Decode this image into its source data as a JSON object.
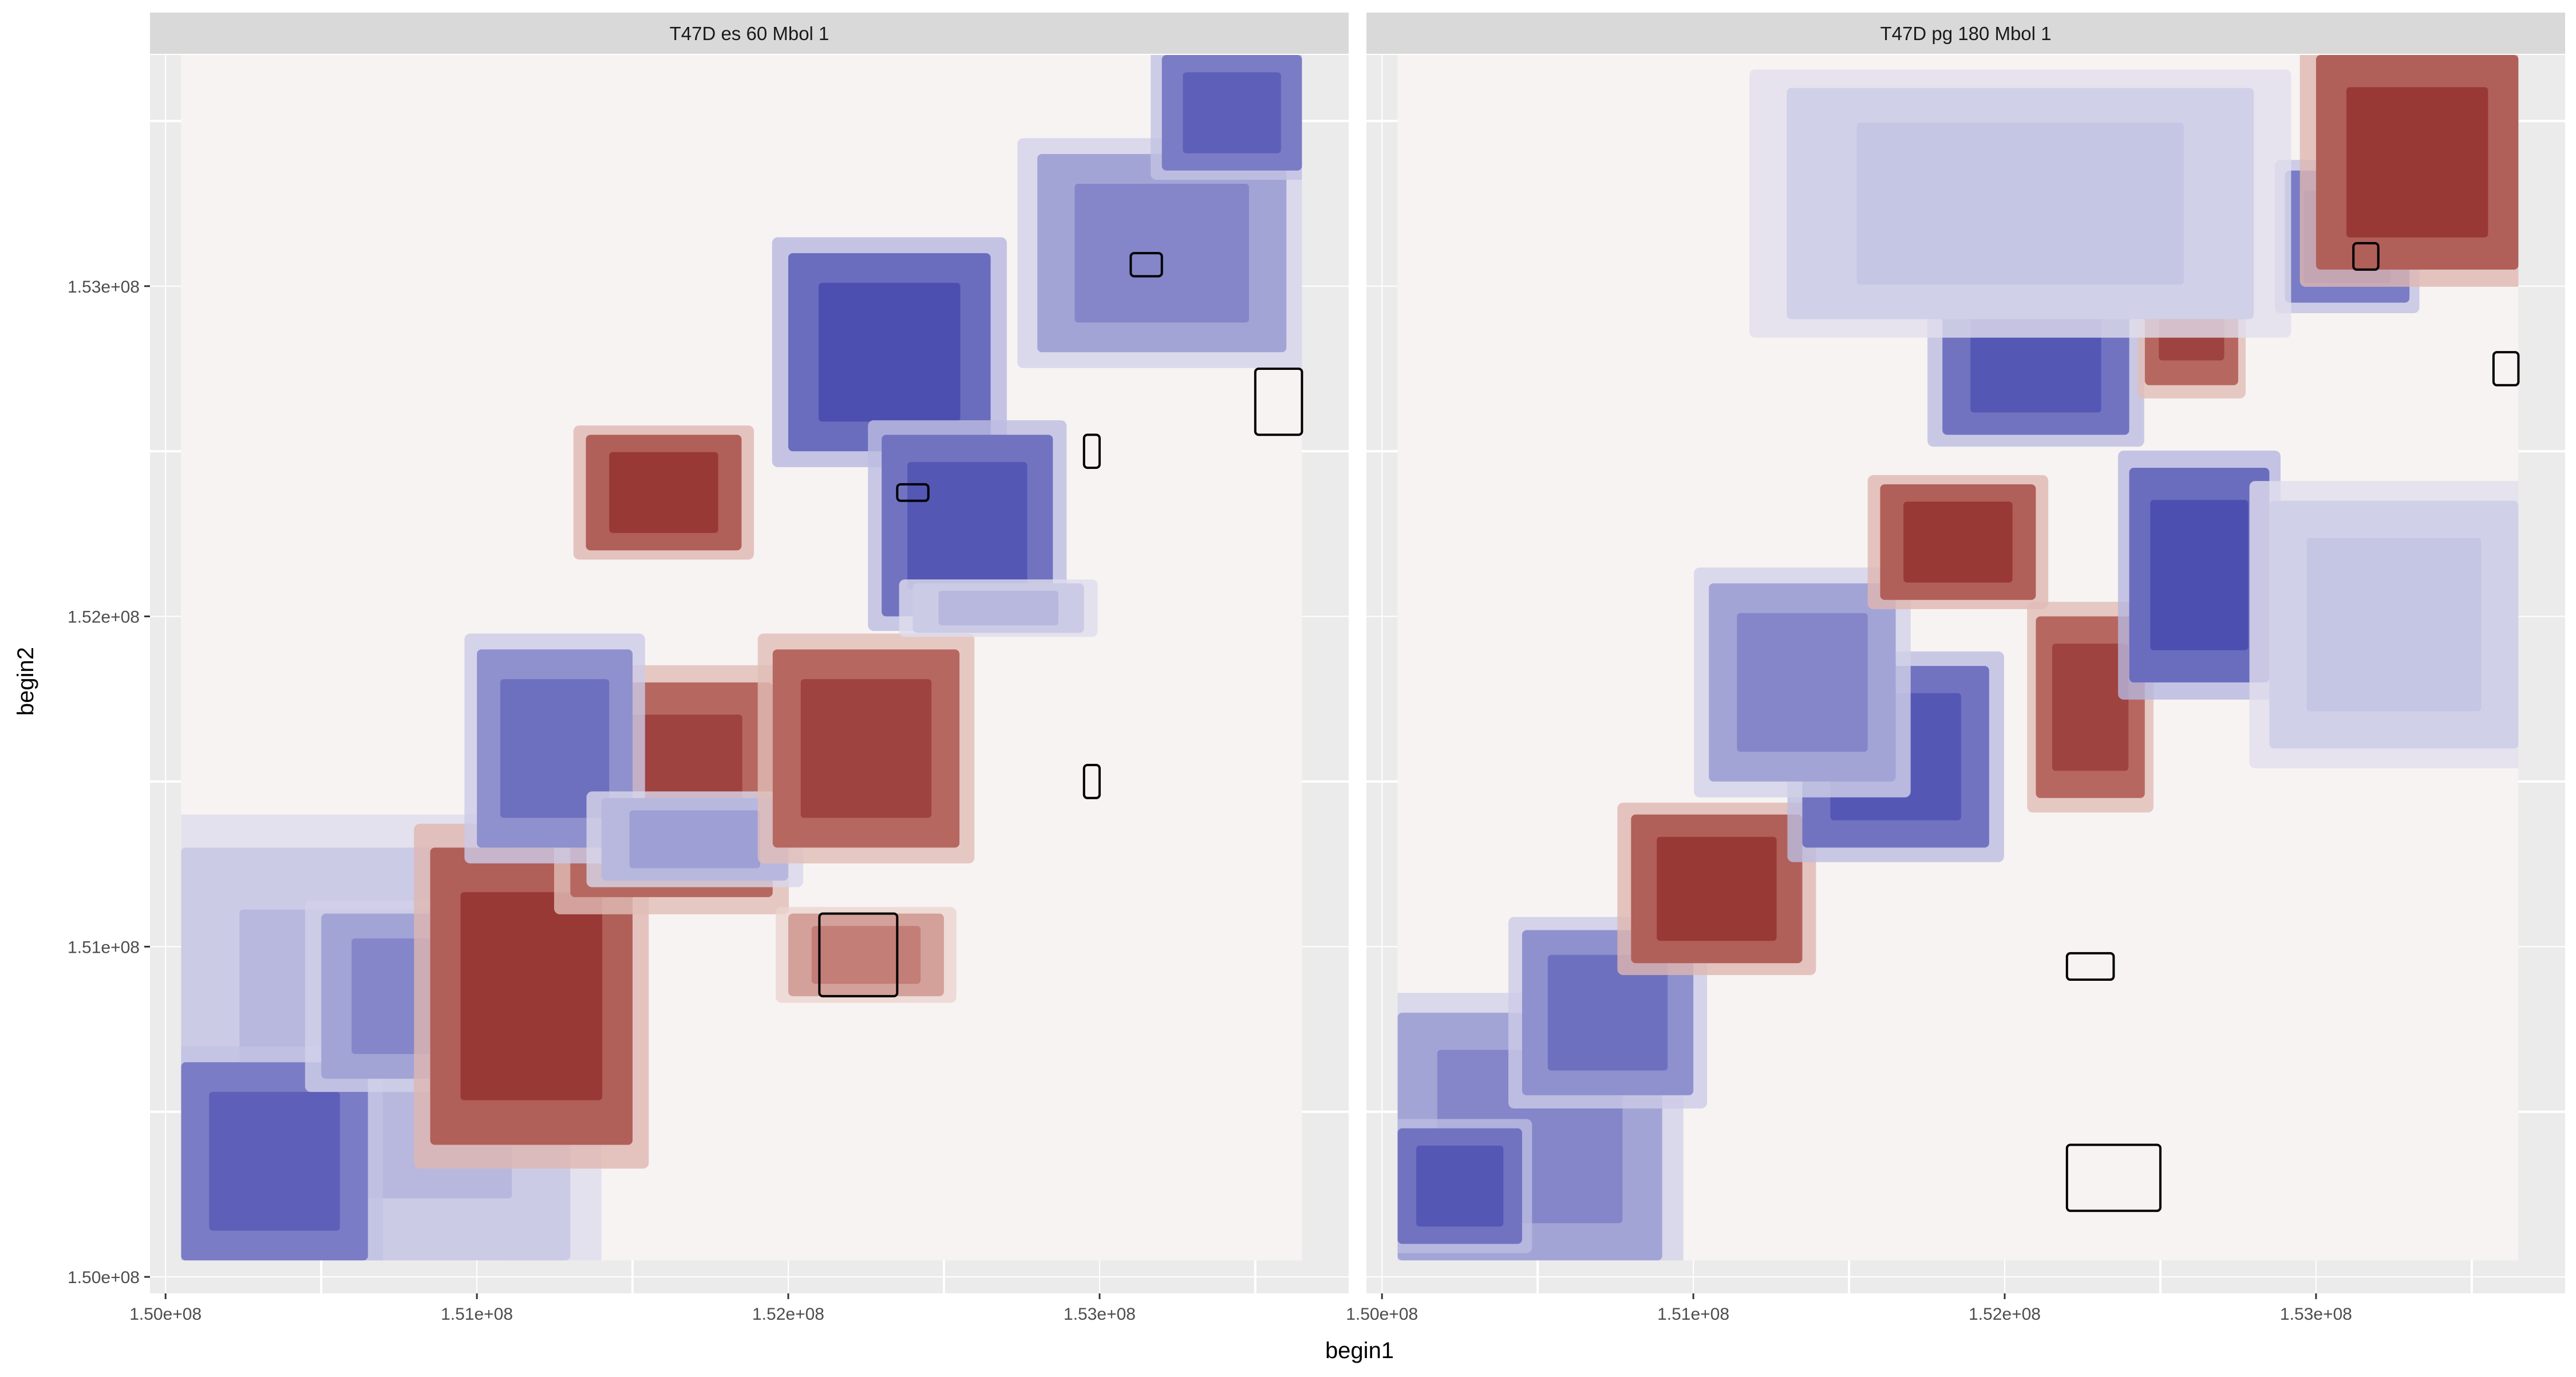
{
  "chart_data": {
    "type": "heatmap",
    "xlabel": "begin1",
    "ylabel": "begin2",
    "xlim": [
      149950000,
      153800000
    ],
    "ylim": [
      149950000,
      153700000
    ],
    "x_ticks": [
      150000000,
      151000000,
      152000000,
      153000000
    ],
    "x_tick_labels": [
      "1.50e+08",
      "1.51e+08",
      "1.52e+08",
      "1.53e+08"
    ],
    "y_ticks": [
      150000000,
      151000000,
      152000000,
      153000000
    ],
    "y_tick_labels": [
      "1.50e+08",
      "1.51e+08",
      "1.52e+08",
      "1.53e+08"
    ],
    "grid": true,
    "colors": {
      "neg_strong": "#3b3fa8",
      "neg_mid": "#7375c2",
      "neg_light": "#c9c9e6",
      "neutral": "#f7f3f2",
      "pos_light": "#e8cbc5",
      "pos_mid": "#b86b63",
      "pos_strong": "#8b2323",
      "panel_bg": "#ebebeb",
      "strip_bg": "#d9d9d9"
    },
    "panels": [
      {
        "title": "T47D es 60 Mbol 1",
        "data_extent": {
          "x": [
            150050000,
            153650000
          ],
          "y": [
            150050000,
            153700000
          ]
        },
        "domains": [
          {
            "x": [
              150050000,
              151300000
            ],
            "y": [
              150050000,
              151300000
            ],
            "value": -0.4
          },
          {
            "x": [
              150050000,
              150650000
            ],
            "y": [
              150050000,
              150650000
            ],
            "value": -0.8
          },
          {
            "x": [
              150500000,
              151150000
            ],
            "y": [
              150600000,
              151100000
            ],
            "value": -0.6
          },
          {
            "x": [
              150850000,
              151500000
            ],
            "y": [
              150400000,
              151300000
            ],
            "value": 0.9
          },
          {
            "x": [
              151300000,
              151950000
            ],
            "y": [
              151150000,
              151800000
            ],
            "value": 0.85
          },
          {
            "x": [
              151000000,
              151500000
            ],
            "y": [
              151300000,
              151900000
            ],
            "value": -0.7
          },
          {
            "x": [
              151400000,
              152000000
            ],
            "y": [
              151200000,
              151450000
            ],
            "value": -0.5
          },
          {
            "x": [
              151350000,
              151850000
            ],
            "y": [
              152200000,
              152550000
            ],
            "value": 0.9
          },
          {
            "x": [
              151950000,
              152550000
            ],
            "y": [
              151300000,
              151900000
            ],
            "value": 0.85
          },
          {
            "x": [
              152000000,
              152500000
            ],
            "y": [
              150850000,
              151100000
            ],
            "value": 0.6
          },
          {
            "x": [
              152000000,
              152650000
            ],
            "y": [
              152500000,
              153100000
            ],
            "value": -0.9
          },
          {
            "x": [
              152300000,
              152850000
            ],
            "y": [
              152000000,
              152550000
            ],
            "value": -0.85
          },
          {
            "x": [
              152800000,
              153600000
            ],
            "y": [
              152800000,
              153400000
            ],
            "value": -0.6
          },
          {
            "x": [
              153200000,
              153650000
            ],
            "y": [
              153350000,
              153700000
            ],
            "value": -0.8
          },
          {
            "x": [
              152400000,
              152950000
            ],
            "y": [
              151950000,
              152100000
            ],
            "value": -0.4
          }
        ],
        "loops": [
          {
            "x": [
              152100000,
              152350000
            ],
            "y": [
              150850000,
              151100000
            ]
          },
          {
            "x": [
              153500000,
              153650000
            ],
            "y": [
              152550000,
              152750000
            ]
          },
          {
            "x": [
              152350000,
              152450000
            ],
            "y": [
              152350000,
              152400000
            ]
          },
          {
            "x": [
              153100000,
              153200000
            ],
            "y": [
              153030000,
              153100000
            ]
          },
          {
            "x": [
              152950000,
              153000000
            ],
            "y": [
              152450000,
              152550000
            ]
          },
          {
            "x": [
              152950000,
              153000000
            ],
            "y": [
              151450000,
              151550000
            ]
          }
        ]
      },
      {
        "title": "T47D pg 180 Mbol 1",
        "data_extent": {
          "x": [
            150050000,
            153650000
          ],
          "y": [
            150050000,
            153700000
          ]
        },
        "domains": [
          {
            "x": [
              150050000,
              150900000
            ],
            "y": [
              150050000,
              150800000
            ],
            "value": -0.6
          },
          {
            "x": [
              150050000,
              150450000
            ],
            "y": [
              150100000,
              150450000
            ],
            "value": -0.85
          },
          {
            "x": [
              150450000,
              151000000
            ],
            "y": [
              150550000,
              151050000
            ],
            "value": -0.7
          },
          {
            "x": [
              150800000,
              151350000
            ],
            "y": [
              150950000,
              151400000
            ],
            "value": 0.9
          },
          {
            "x": [
              151350000,
              151950000
            ],
            "y": [
              151300000,
              151850000
            ],
            "value": -0.85
          },
          {
            "x": [
              151050000,
              151650000
            ],
            "y": [
              151500000,
              152100000
            ],
            "value": -0.6
          },
          {
            "x": [
              151600000,
              152100000
            ],
            "y": [
              152050000,
              152400000
            ],
            "value": 0.9
          },
          {
            "x": [
              152100000,
              152450000
            ],
            "y": [
              151450000,
              152000000
            ],
            "value": 0.85
          },
          {
            "x": [
              152400000,
              152850000
            ],
            "y": [
              151800000,
              152450000
            ],
            "value": -0.9
          },
          {
            "x": [
              151800000,
              152400000
            ],
            "y": [
              152550000,
              153000000
            ],
            "value": -0.85
          },
          {
            "x": [
              152450000,
              152750000
            ],
            "y": [
              152700000,
              153200000
            ],
            "value": 0.85
          },
          {
            "x": [
              152900000,
              153300000
            ],
            "y": [
              152950000,
              153350000
            ],
            "value": -0.8
          },
          {
            "x": [
              153000000,
              153650000
            ],
            "y": [
              153050000,
              153700000
            ],
            "value": 0.9
          },
          {
            "x": [
              151300000,
              152800000
            ],
            "y": [
              152900000,
              153600000
            ],
            "value": -0.35
          },
          {
            "x": [
              152850000,
              153650000
            ],
            "y": [
              151600000,
              152350000
            ],
            "value": -0.35
          }
        ],
        "loops": [
          {
            "x": [
              152200000,
              152500000
            ],
            "y": [
              150200000,
              150400000
            ]
          },
          {
            "x": [
              152200000,
              152350000
            ],
            "y": [
              150900000,
              150980000
            ]
          },
          {
            "x": [
              153570000,
              153650000
            ],
            "y": [
              152700000,
              152800000
            ]
          },
          {
            "x": [
              153120000,
              153200000
            ],
            "y": [
              153050000,
              153130000
            ]
          }
        ]
      }
    ]
  }
}
